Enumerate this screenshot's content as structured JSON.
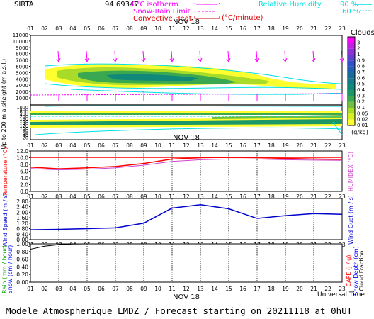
{
  "header": {
    "station": "SIRTA",
    "coords": "94.69347",
    "isotherm_label": "0°C isotherm",
    "snow_rain_label": "Snow-Rain Limit",
    "convective_label": "Convective Heat.",
    "convective_unit": "(°C/minute)",
    "rh_label": "Relative Humidity",
    "rh_90": "90 %",
    "rh_60": "60 %"
  },
  "date_label": "NOV 18",
  "universal_time": "Universal Time",
  "footer": "Modele Atmospherique LMDZ / Forecast starting on 20211118 at 0hUT",
  "colors": {
    "isotherm": "#ff00ff",
    "convective": "#dd0000",
    "rh": "#00e0e0",
    "temperature": "#ff0000",
    "humidex": "#cc44cc",
    "wind": "#0000cc",
    "rain": "#00aa00",
    "snow": "#0000ff",
    "capc": "#ff0000"
  },
  "colorbar": {
    "title": "Clouds",
    "unit": "(g/kg)",
    "levels": [
      "0.01",
      "0.02",
      "0.05",
      "0.1",
      "0.2",
      "0.3",
      "0.4",
      "0.5",
      "0.6",
      "0.7",
      "0.8",
      "0.9",
      "1",
      "2",
      "3"
    ],
    "colors": [
      "#ffff30",
      "#d8f020",
      "#a8dc28",
      "#70c040",
      "#3aa850",
      "#1c9868",
      "#10887a",
      "#147a8a",
      "#1a6a9a",
      "#2060b0",
      "#3050c8",
      "#6040d0",
      "#9030d8",
      "#c020e0",
      "#ff00ff"
    ]
  },
  "chart_data": {
    "type": "line",
    "hours": [
      "01",
      "02",
      "03",
      "04",
      "05",
      "06",
      "07",
      "08",
      "09",
      "10",
      "11",
      "12",
      "13",
      "14",
      "15",
      "16",
      "17",
      "18",
      "19",
      "20",
      "21",
      "22",
      "23"
    ],
    "labeled_hours": [
      "01",
      "03",
      "05",
      "07",
      "09",
      "11",
      "13",
      "15",
      "17",
      "19",
      "21",
      "23"
    ],
    "panels": [
      {
        "name": "clouds",
        "ylabel": "Height (m a.s.l.)",
        "ylabel2": "Up to 200 m a.s.l.",
        "yticks_upper": [
          "11000",
          "10000",
          "9000",
          "8000",
          "7000",
          "6000",
          "5000",
          "4000",
          "3000",
          "2000",
          "1000"
        ],
        "yticks_lower": [
          "1000",
          "800",
          "600",
          "400",
          "200",
          "180",
          "160",
          "140",
          "120",
          "100",
          "80",
          "60",
          "40",
          "20"
        ],
        "isotherm_height_m": 1450,
        "isotherm_label": "0"
      },
      {
        "name": "temperature",
        "ylabel": "Temperature (°C)",
        "ylabel_right": "HUMIDEX (°C)",
        "ylim": [
          0,
          12
        ],
        "yticks": [
          "12.0",
          "10.0",
          "8.0",
          "6.0",
          "4.0",
          "2.0",
          "0.0"
        ],
        "series": [
          {
            "name": "Temperature",
            "x": [
              1,
              3,
              5,
              7,
              9,
              11,
              13,
              15,
              17,
              19,
              21,
              23
            ],
            "values": [
              7.2,
              6.7,
              7.0,
              7.4,
              8.3,
              9.6,
              10.0,
              10.1,
              10.0,
              9.8,
              9.6,
              9.5
            ]
          },
          {
            "name": "HUMIDEX",
            "x": [
              1,
              3,
              5,
              7,
              9,
              11,
              13,
              15,
              17,
              19,
              21,
              23
            ],
            "values": [
              6.8,
              6.4,
              6.6,
              7.0,
              7.8,
              8.9,
              9.4,
              9.6,
              9.6,
              9.4,
              9.3,
              9.2
            ]
          }
        ]
      },
      {
        "name": "wind",
        "ylabel": "Wind Speed (m / s)",
        "ylabel_right": "Wind Gust (m / s)",
        "ylim": [
          0,
          3
        ],
        "yticks": [
          "2.80",
          "2.40",
          "2.00",
          "1.60",
          "1.20",
          "0.80",
          "0.40",
          "0.00"
        ],
        "series": [
          {
            "name": "Wind Speed",
            "x": [
              1,
              3,
              5,
              7,
              9,
              11,
              13,
              15,
              17,
              19,
              21,
              23
            ],
            "values": [
              0.72,
              0.75,
              0.8,
              0.86,
              1.2,
              2.3,
              2.55,
              2.25,
              1.55,
              1.75,
              1.9,
              1.85
            ]
          }
        ]
      },
      {
        "name": "precipitation",
        "ylabel": "Rain (mm / hour)",
        "ylabel2": "Snow (cm / hour)",
        "ylabel_right": "CAPE (J / g)",
        "ylabel_right2": "Snow Depth (cm)",
        "ylabel_right3": "Cloud Fraction",
        "ylim": [
          0,
          1
        ],
        "yticks": [
          "1.00",
          "0.80",
          "0.60",
          "0.40",
          "0.20",
          "0.00"
        ],
        "series": [
          {
            "name": "Cloud Fraction",
            "x": [
              1,
              2,
              3,
              4,
              5,
              6,
              7,
              8,
              9,
              10,
              11,
              12,
              13,
              14,
              15,
              16,
              17,
              18,
              19,
              20,
              21,
              22,
              23
            ],
            "values": [
              0.86,
              0.94,
              0.98,
              0.995,
              1,
              1,
              1,
              1,
              1,
              1,
              1,
              1,
              1,
              1,
              1,
              1,
              1,
              1,
              1,
              1,
              1,
              1,
              1
            ]
          }
        ]
      }
    ]
  }
}
